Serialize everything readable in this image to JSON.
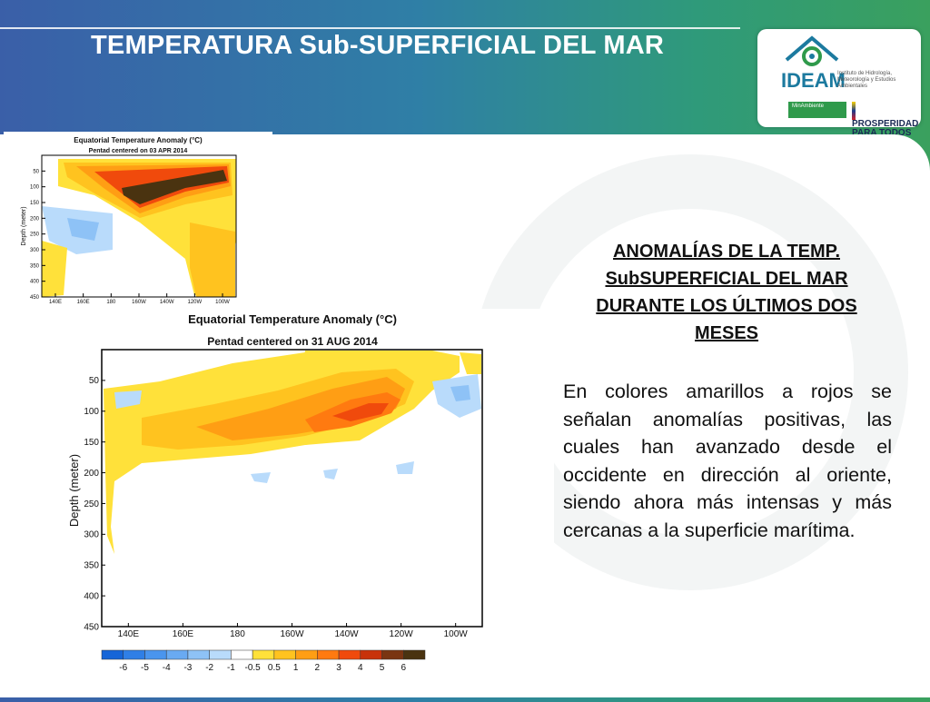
{
  "slide": {
    "title": "TEMPERATURA Sub-SUPERFICIAL DEL MAR",
    "heading": "ANOMALÍAS DE LA TEMP. SubSUPERFICIAL DEL MAR DURANTE LOS ÚLTIMOS DOS MESES",
    "body": "En colores amarillos a rojos se señalan anomalías positivas, las cuales han avanzado desde el occidente en dirección al oriente, siendo ahora más intensas y más cercanas a la superficie marítima."
  },
  "logo": {
    "name": "IDEAM",
    "description": "Instituto de Hidrología, Meteorología y Estudios Ambientales",
    "ministry": "MinAmbiente",
    "slogan_line1": "PROSPERIDAD",
    "slogan_line2": "PARA TODOS"
  },
  "colors": {
    "accent": "#1c7a9f",
    "palette": [
      "#1565d8",
      "#2f7fe6",
      "#4a95ee",
      "#69aaf2",
      "#8ec2f6",
      "#b9dbfb",
      "#ffffff",
      "#ffe13a",
      "#ffc31f",
      "#ff9e14",
      "#ff7a10",
      "#f04a0c",
      "#c8320a",
      "#7a3512",
      "#4a3310"
    ]
  },
  "chart_data": [
    {
      "type": "heatmap",
      "title": "Equatorial Temperature Anomaly (°C)",
      "subtitle": "Pentad centered on 03 APR 2014",
      "xlabel": "",
      "ylabel": "Depth (meter)",
      "x_ticks": [
        "140E",
        "160E",
        "180",
        "160W",
        "140W",
        "120W",
        "100W"
      ],
      "y_ticks": [
        50,
        100,
        150,
        200,
        250,
        300,
        350,
        400,
        450
      ],
      "ylim": [
        450,
        0
      ],
      "notes": "Strong positive anomaly core (up to ~6 °C) near 180–120W at 100–150 m; weak negative anomalies in west at 150–250 m; positive anomalies east at depth."
    },
    {
      "type": "heatmap",
      "title": "Equatorial Temperature Anomaly (°C)",
      "subtitle": "Pentad centered on 31 AUG 2014",
      "xlabel": "",
      "ylabel": "Depth (meter)",
      "x_ticks": [
        "140E",
        "160E",
        "180",
        "160W",
        "140W",
        "120W",
        "100W"
      ],
      "y_ticks": [
        50,
        100,
        150,
        200,
        250,
        300,
        350,
        400,
        450
      ],
      "ylim": [
        450,
        0
      ],
      "colorbar": [
        "-6",
        "-5",
        "-4",
        "-3",
        "-2",
        "-1",
        "-0.5",
        "0.5",
        "1",
        "2",
        "3",
        "4",
        "5",
        "6"
      ],
      "notes": "Positive anomalies (1–4 °C) spanning 160E–100W at 50–200 m, strongest near 140W–120W at ~120 m; small negative anomalies near 100W surface and 160W at ~200 m."
    }
  ]
}
